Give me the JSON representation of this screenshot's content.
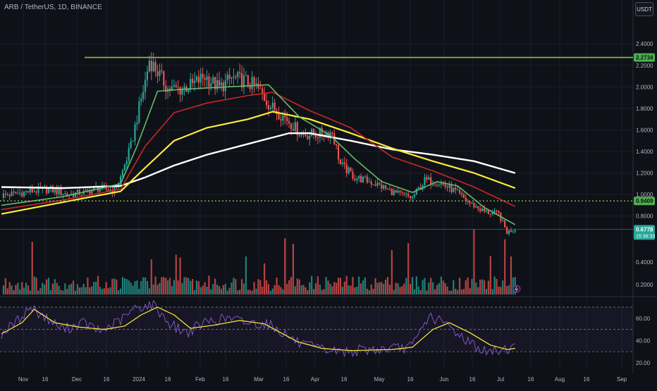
{
  "header": {
    "title": "ARB / TetherUS, 1D, BINANCE",
    "currency": "USDT"
  },
  "colors": {
    "background": "#0f1118",
    "up": "#26a69a",
    "down": "#ef5350",
    "ema_fast": "#66bb6a",
    "ema_mid": "#c62828",
    "ema_slow": "#ffeb3b",
    "ema_long": "#ffffff",
    "resistance": "#8bc34a",
    "support": "#8bc34a",
    "rsi": "#7e57c2",
    "rsi_ma": "#ffeb3b"
  },
  "chart_data": {
    "type": "candlestick",
    "symbol": "ARB / TetherUS",
    "interval": "1D",
    "exchange": "BINANCE",
    "price_axis": {
      "range": [
        0.7,
        2.48
      ],
      "ticks": [
        "2.4000",
        "2.2000",
        "2.0000",
        "1.8000",
        "1.6000",
        "1.4000",
        "1.2000",
        "1.0000",
        "0.8000"
      ]
    },
    "volume_axis": {
      "ticks": [
        "0.4000",
        "0.2000"
      ]
    },
    "rsi_axis": {
      "range": [
        15,
        75
      ],
      "ticks": [
        "60.00",
        "40.00",
        "20.00"
      ],
      "bands": [
        70,
        50,
        30
      ]
    },
    "time_labels": [
      "Nov",
      "16",
      "Dec",
      "16",
      "2024",
      "16",
      "Feb",
      "16",
      "Mar",
      "16",
      "Apr",
      "16",
      "May",
      "16",
      "Jun",
      "16",
      "Jul",
      "16",
      "Aug",
      "16",
      "Sep"
    ],
    "levels": [
      {
        "label": "2.2734",
        "price": 2.2734,
        "style": "solid"
      },
      {
        "label": "0.9409",
        "price": 0.9409,
        "style": "dotted"
      }
    ],
    "last_price": {
      "label": "0.6778",
      "price": 0.6778,
      "countdown": "15:36:33"
    },
    "anchors": [
      [
        0,
        0.99
      ],
      [
        14,
        1.03
      ],
      [
        23,
        1.05
      ],
      [
        32,
        1.0
      ],
      [
        41,
        1.02
      ],
      [
        46,
        1.06
      ],
      [
        55,
        1.04
      ],
      [
        58,
        1.16
      ],
      [
        63,
        1.45
      ],
      [
        66,
        1.72
      ],
      [
        70,
        2.05
      ],
      [
        72,
        2.25
      ],
      [
        76,
        2.14
      ],
      [
        81,
        1.98
      ],
      [
        87,
        1.98
      ],
      [
        93,
        2.02
      ],
      [
        99,
        2.1
      ],
      [
        106,
        1.99
      ],
      [
        112,
        2.08
      ],
      [
        118,
        2.06
      ],
      [
        124,
        2.0
      ],
      [
        131,
        1.82
      ],
      [
        139,
        1.7
      ],
      [
        146,
        1.56
      ],
      [
        153,
        1.56
      ],
      [
        161,
        1.58
      ],
      [
        165,
        1.28
      ],
      [
        172,
        1.16
      ],
      [
        181,
        1.11
      ],
      [
        192,
        1.01
      ],
      [
        200,
        0.97
      ],
      [
        206,
        1.13
      ],
      [
        212,
        1.12
      ],
      [
        220,
        1.04
      ],
      [
        228,
        0.92
      ],
      [
        235,
        0.84
      ],
      [
        242,
        0.82
      ],
      [
        246,
        0.65
      ],
      [
        250,
        0.68
      ]
    ],
    "ema_fast": [
      [
        0,
        0.9
      ],
      [
        30,
        0.98
      ],
      [
        58,
        1.1
      ],
      [
        66,
        1.45
      ],
      [
        76,
        1.96
      ],
      [
        90,
        1.98
      ],
      [
        110,
        2.0
      ],
      [
        130,
        2.02
      ],
      [
        145,
        1.72
      ],
      [
        160,
        1.55
      ],
      [
        172,
        1.33
      ],
      [
        185,
        1.12
      ],
      [
        200,
        1.02
      ],
      [
        212,
        1.12
      ],
      [
        222,
        1.08
      ],
      [
        235,
        0.88
      ],
      [
        250,
        0.72
      ]
    ],
    "ema_mid": [
      [
        0,
        0.86
      ],
      [
        30,
        0.95
      ],
      [
        58,
        1.05
      ],
      [
        70,
        1.45
      ],
      [
        84,
        1.76
      ],
      [
        100,
        1.85
      ],
      [
        120,
        1.92
      ],
      [
        132,
        1.95
      ],
      [
        150,
        1.78
      ],
      [
        170,
        1.62
      ],
      [
        190,
        1.35
      ],
      [
        210,
        1.22
      ],
      [
        230,
        1.07
      ],
      [
        250,
        0.89
      ]
    ],
    "ema_slow": [
      [
        0,
        0.82
      ],
      [
        30,
        0.93
      ],
      [
        58,
        1.03
      ],
      [
        70,
        1.25
      ],
      [
        84,
        1.5
      ],
      [
        100,
        1.62
      ],
      [
        120,
        1.7
      ],
      [
        132,
        1.77
      ],
      [
        150,
        1.7
      ],
      [
        170,
        1.57
      ],
      [
        190,
        1.43
      ],
      [
        210,
        1.31
      ],
      [
        230,
        1.2
      ],
      [
        250,
        1.06
      ]
    ],
    "ema_long": [
      [
        0,
        1.07
      ],
      [
        30,
        1.06
      ],
      [
        58,
        1.08
      ],
      [
        70,
        1.16
      ],
      [
        84,
        1.27
      ],
      [
        100,
        1.37
      ],
      [
        120,
        1.47
      ],
      [
        140,
        1.57
      ],
      [
        150,
        1.57
      ],
      [
        170,
        1.5
      ],
      [
        190,
        1.42
      ],
      [
        210,
        1.37
      ],
      [
        230,
        1.31
      ],
      [
        250,
        1.2
      ]
    ],
    "rsi": [
      [
        0,
        46
      ],
      [
        8,
        58
      ],
      [
        14,
        70
      ],
      [
        22,
        60
      ],
      [
        30,
        50
      ],
      [
        40,
        56
      ],
      [
        48,
        48
      ],
      [
        58,
        58
      ],
      [
        66,
        70
      ],
      [
        74,
        72
      ],
      [
        82,
        55
      ],
      [
        90,
        47
      ],
      [
        100,
        57
      ],
      [
        110,
        60
      ],
      [
        120,
        56
      ],
      [
        130,
        55
      ],
      [
        138,
        46
      ],
      [
        146,
        36
      ],
      [
        156,
        32
      ],
      [
        166,
        30
      ],
      [
        180,
        32
      ],
      [
        194,
        33
      ],
      [
        200,
        35
      ],
      [
        208,
        62
      ],
      [
        216,
        55
      ],
      [
        226,
        41
      ],
      [
        236,
        29
      ],
      [
        246,
        33
      ],
      [
        250,
        34
      ]
    ],
    "rsi_ma": [
      [
        0,
        46
      ],
      [
        10,
        56
      ],
      [
        16,
        68
      ],
      [
        26,
        56
      ],
      [
        38,
        52
      ],
      [
        50,
        50
      ],
      [
        60,
        53
      ],
      [
        68,
        63
      ],
      [
        76,
        70
      ],
      [
        84,
        63
      ],
      [
        92,
        51
      ],
      [
        104,
        54
      ],
      [
        116,
        58
      ],
      [
        128,
        55
      ],
      [
        136,
        47
      ],
      [
        144,
        39
      ],
      [
        156,
        33
      ],
      [
        170,
        31
      ],
      [
        190,
        32
      ],
      [
        200,
        34
      ],
      [
        210,
        50
      ],
      [
        218,
        56
      ],
      [
        228,
        47
      ],
      [
        238,
        36
      ],
      [
        246,
        32
      ],
      [
        250,
        33
      ]
    ]
  }
}
